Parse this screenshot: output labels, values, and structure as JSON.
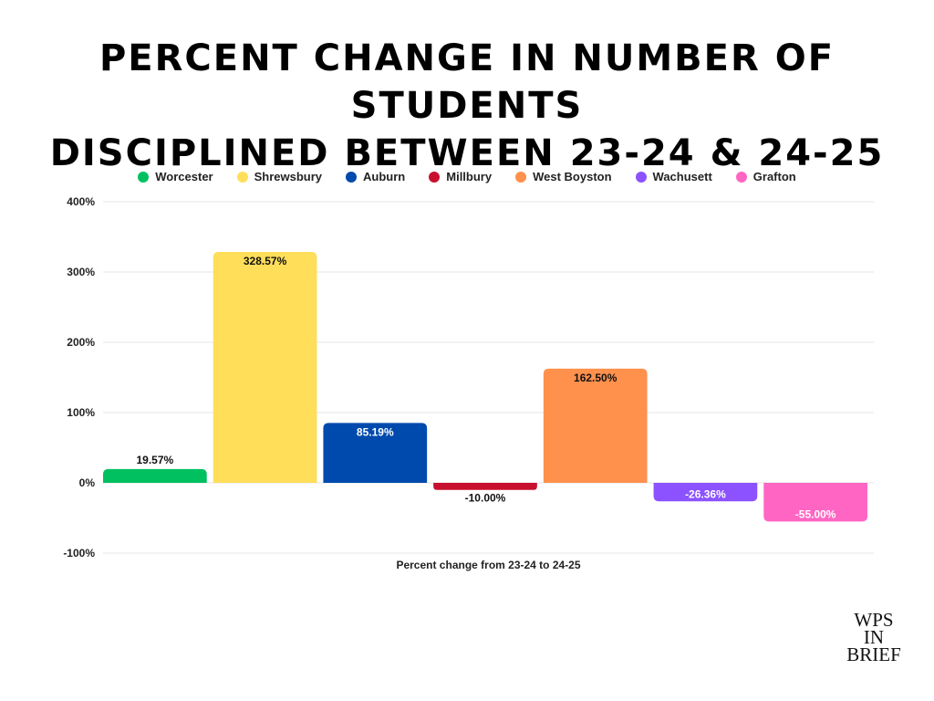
{
  "title": {
    "line1": "PERCENT CHANGE IN NUMBER OF STUDENTS",
    "line2": "DISCIPLINED BETWEEN 23-24 & 24-25"
  },
  "logo": {
    "line1": "WPS",
    "line2": "IN",
    "line3": "BRIEF"
  },
  "chart_data": {
    "type": "bar",
    "title": "PERCENT CHANGE IN NUMBER OF STUDENTS DISCIPLINED BETWEEN 23-24 & 24-25",
    "xlabel": "Percent change from 23-24 to 24-25",
    "ylabel": "",
    "ylim": [
      -100,
      400
    ],
    "yticks": [
      -100,
      0,
      100,
      200,
      300,
      400
    ],
    "ytick_labels": [
      "-100%",
      "0%",
      "100%",
      "200%",
      "300%",
      "400%"
    ],
    "grid": true,
    "legend": "top-center",
    "series": [
      {
        "name": "Worcester",
        "value": 19.57,
        "label": "19.57%",
        "color": "#00c060"
      },
      {
        "name": "Shrewsbury",
        "value": 328.57,
        "label": "328.57%",
        "color": "#ffde59"
      },
      {
        "name": "Auburn",
        "value": 85.19,
        "label": "85.19%",
        "color": "#004aad"
      },
      {
        "name": "Millbury",
        "value": -10.0,
        "label": "-10.00%",
        "color": "#c8102e"
      },
      {
        "name": "West Boyston",
        "value": 162.5,
        "label": "162.50%",
        "color": "#ff914d"
      },
      {
        "name": "Wachusett",
        "value": -26.36,
        "label": "-26.36%",
        "color": "#8c52ff"
      },
      {
        "name": "Grafton",
        "value": -55.0,
        "label": "-55.00%",
        "color": "#ff66c4"
      }
    ]
  }
}
